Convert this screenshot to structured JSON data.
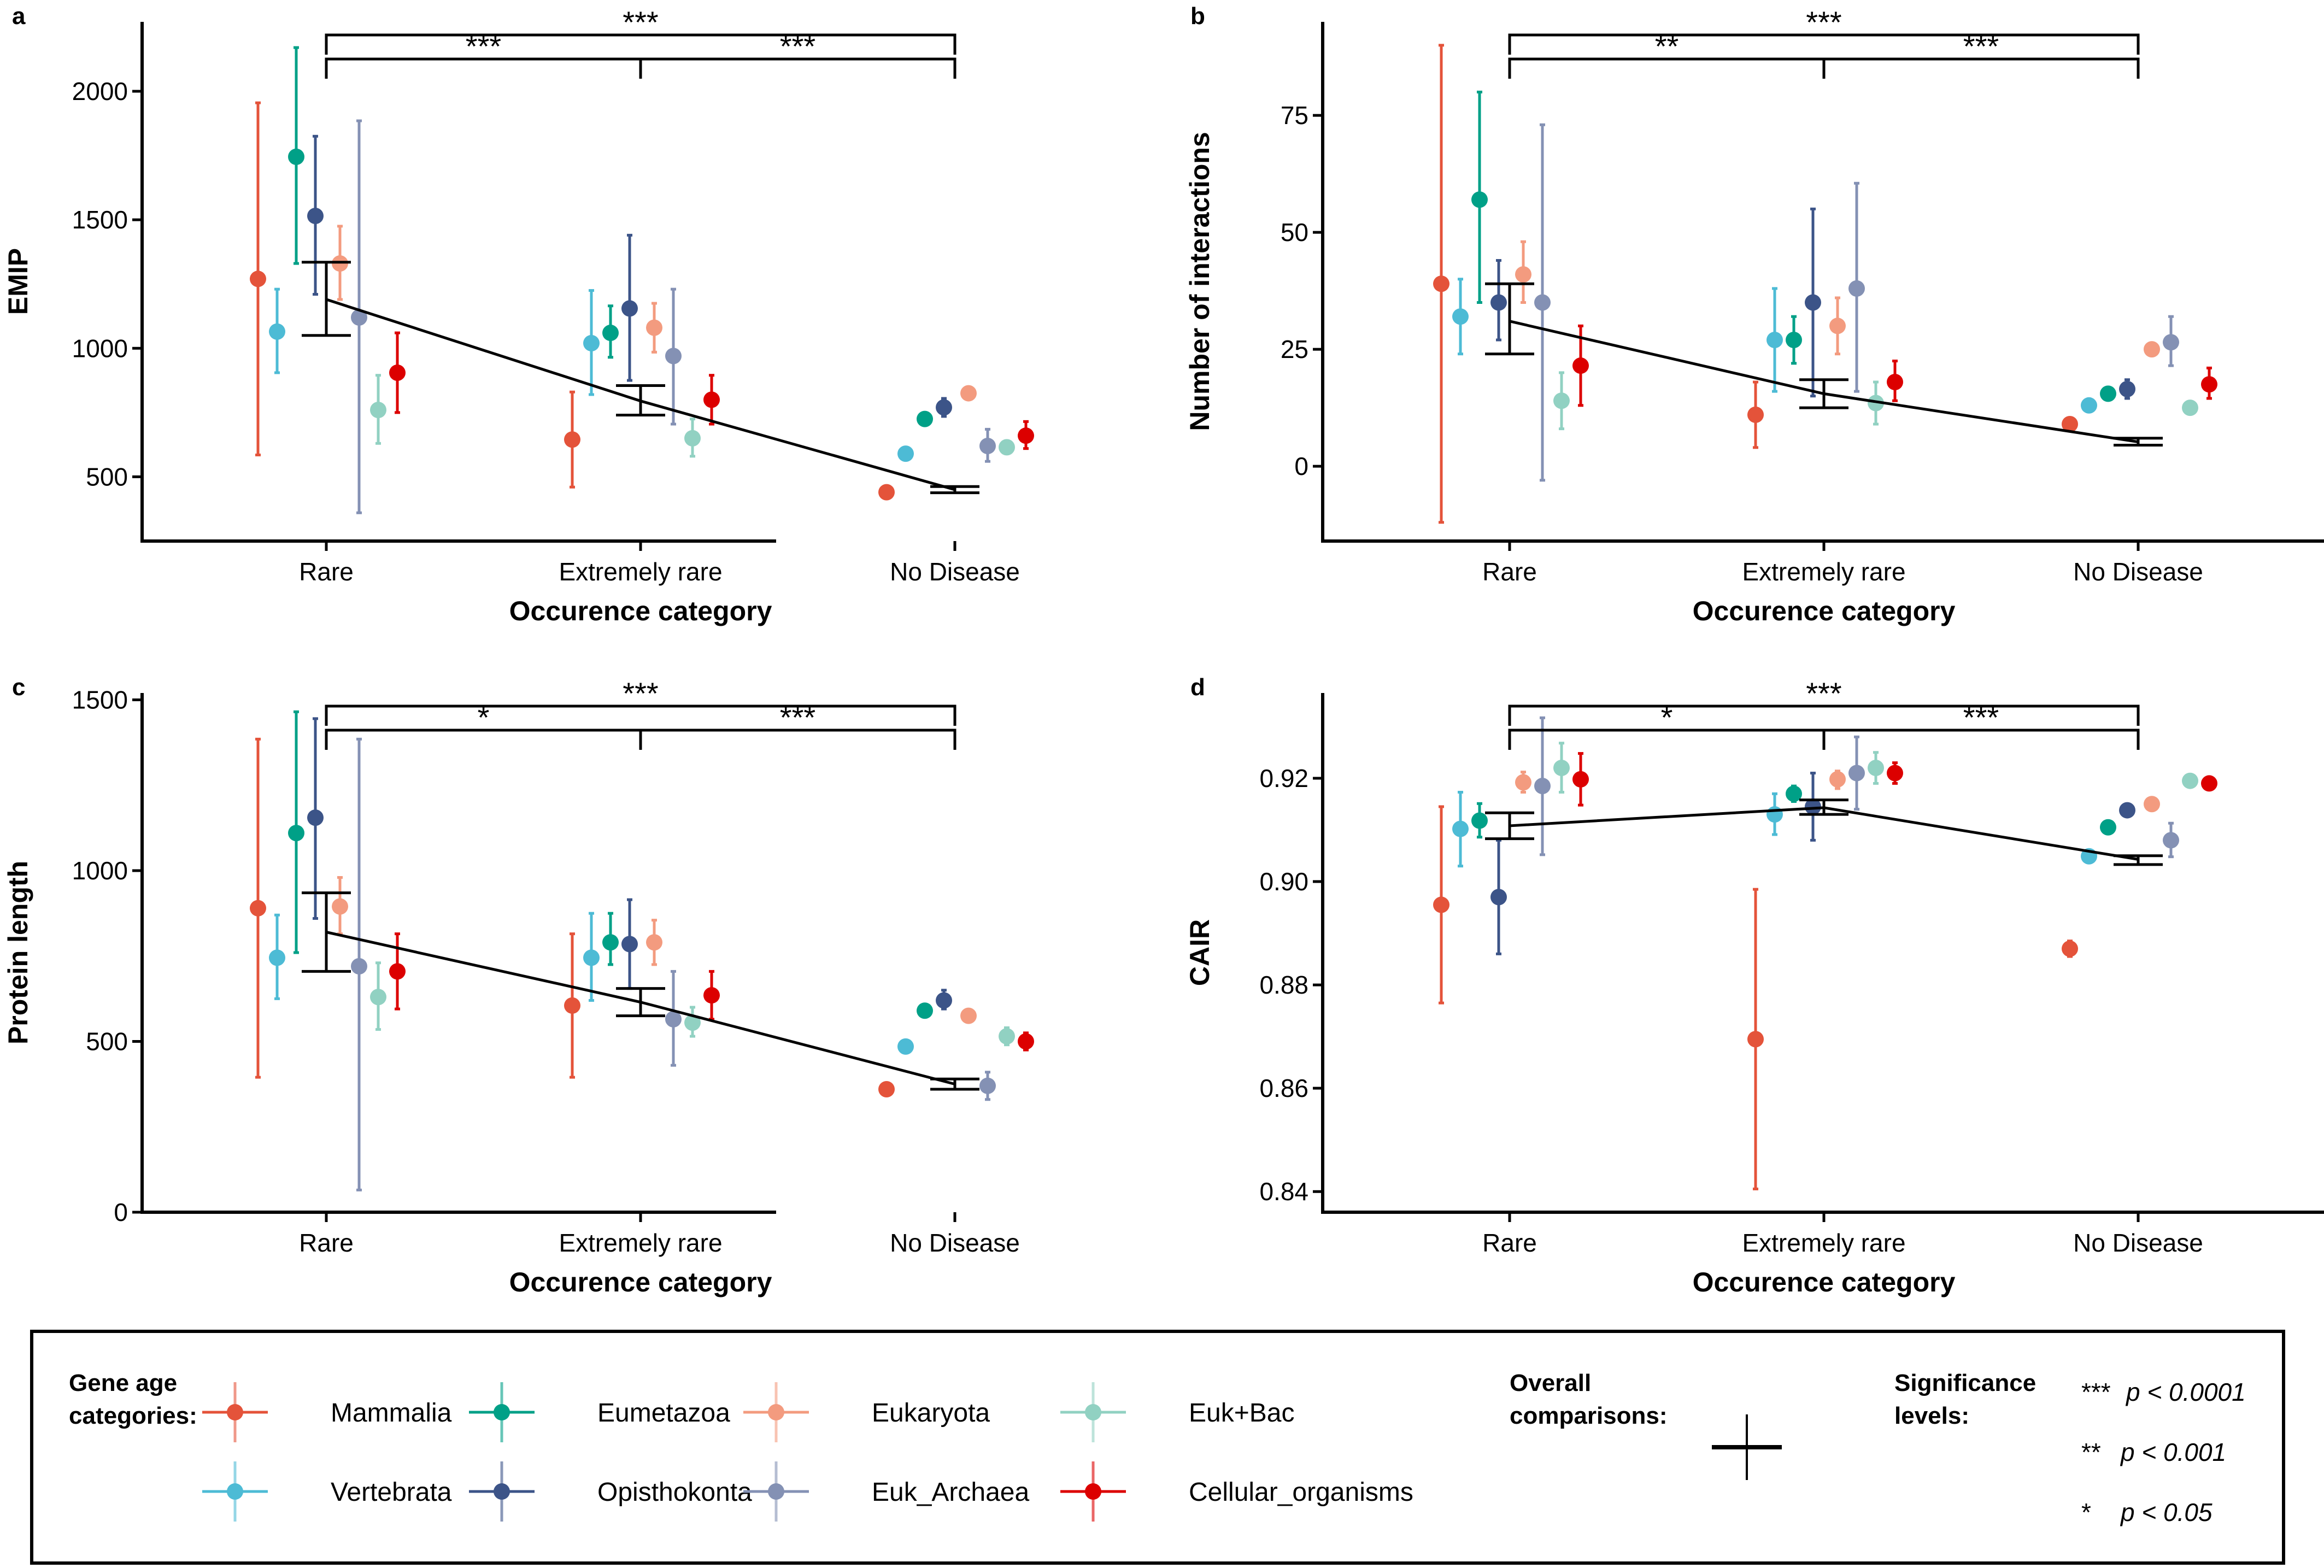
{
  "age_categories": [
    {
      "name": "Mammalia",
      "color": "#E4533A"
    },
    {
      "name": "Vertebrata",
      "color": "#4DBBD5"
    },
    {
      "name": "Eumetazoa",
      "color": "#00A087"
    },
    {
      "name": "Opisthokonta",
      "color": "#3C5488"
    },
    {
      "name": "Eukaryota",
      "color": "#F39B7F"
    },
    {
      "name": "Euk_Archaea",
      "color": "#8491B4"
    },
    {
      "name": "Euk+Bac",
      "color": "#91D1C2"
    },
    {
      "name": "Cellular_organisms",
      "color": "#DC0000"
    }
  ],
  "legend": {
    "gene_age_label": [
      "Gene age",
      "categories:"
    ],
    "overall_label": [
      "Overall",
      "comparisons:"
    ],
    "significance_label": [
      "Significance",
      "levels:"
    ],
    "significance_levels": [
      {
        "stars": "***",
        "text": "p < 0.0001"
      },
      {
        "stars": "**",
        "text": "p < 0.001"
      },
      {
        "stars": "*",
        "text": "p < 0.05"
      }
    ]
  },
  "chart_data": [
    {
      "panel": "a",
      "type": "scatter",
      "ylabel": "EMIP",
      "xlabel": "Occurence category",
      "categories": [
        "Rare",
        "Extremely rare",
        "No Disease"
      ],
      "ylim": [
        250,
        2270
      ],
      "yticks": [
        500,
        1000,
        1500,
        2000
      ],
      "series": [
        {
          "name": "Mammalia",
          "mean": [
            1270,
            645,
            440
          ],
          "low": [
            585,
            460,
            440
          ],
          "high": [
            1955,
            830,
            440
          ]
        },
        {
          "name": "Vertebrata",
          "mean": [
            1065,
            1020,
            590
          ],
          "low": [
            905,
            820,
            590
          ],
          "high": [
            1230,
            1225,
            590
          ]
        },
        {
          "name": "Eumetazoa",
          "mean": [
            1745,
            1060,
            725
          ],
          "low": [
            1330,
            965,
            725
          ],
          "high": [
            2170,
            1165,
            725
          ]
        },
        {
          "name": "Opisthokonta",
          "mean": [
            1515,
            1155,
            770
          ],
          "low": [
            1210,
            875,
            735
          ],
          "high": [
            1825,
            1440,
            805
          ]
        },
        {
          "name": "Eukaryota",
          "mean": [
            1330,
            1080,
            825
          ],
          "low": [
            1190,
            985,
            825
          ],
          "high": [
            1475,
            1175,
            825
          ]
        },
        {
          "name": "Euk_Archaea",
          "mean": [
            1120,
            970,
            620
          ],
          "low": [
            360,
            705,
            560
          ],
          "high": [
            1885,
            1230,
            685
          ]
        },
        {
          "name": "Euk+Bac",
          "mean": [
            760,
            650,
            615
          ],
          "low": [
            630,
            580,
            590
          ],
          "high": [
            895,
            725,
            640
          ]
        },
        {
          "name": "Cellular_organisms",
          "mean": [
            905,
            800,
            660
          ],
          "low": [
            750,
            705,
            610
          ],
          "high": [
            1060,
            895,
            715
          ]
        }
      ],
      "overall": {
        "mean": [
          1190,
          795,
          450
        ],
        "low": [
          1050,
          740,
          438
        ],
        "high": [
          1335,
          855,
          462
        ]
      },
      "comparisons": [
        {
          "from": "Rare",
          "to": "No Disease",
          "label": "***"
        },
        {
          "from": "Rare",
          "to": "Extremely rare",
          "label": "***"
        },
        {
          "from": "Extremely rare",
          "to": "No Disease",
          "label": "***"
        }
      ]
    },
    {
      "panel": "b",
      "type": "scatter",
      "ylabel": "Number of interactions",
      "xlabel": "Occurence category",
      "categories": [
        "Rare",
        "Extremely rare",
        "No Disease"
      ],
      "ylim": [
        -16,
        95
      ],
      "yticks": [
        0,
        25,
        50,
        75
      ],
      "series": [
        {
          "name": "Mammalia",
          "mean": [
            39,
            11,
            9
          ],
          "low": [
            -12,
            4,
            9
          ],
          "high": [
            90,
            18,
            9
          ]
        },
        {
          "name": "Vertebrata",
          "mean": [
            32,
            27,
            13
          ],
          "low": [
            24,
            16,
            13
          ],
          "high": [
            40,
            38,
            13
          ]
        },
        {
          "name": "Eumetazoa",
          "mean": [
            57,
            27,
            15.5
          ],
          "low": [
            35,
            22,
            15.5
          ],
          "high": [
            80,
            32,
            15.5
          ]
        },
        {
          "name": "Opisthokonta",
          "mean": [
            35,
            35,
            16.5
          ],
          "low": [
            27,
            15,
            14.5
          ],
          "high": [
            44,
            55,
            18.5
          ]
        },
        {
          "name": "Eukaryota",
          "mean": [
            41,
            30,
            25
          ],
          "low": [
            35,
            24,
            25
          ],
          "high": [
            48,
            36,
            25
          ]
        },
        {
          "name": "Euk_Archaea",
          "mean": [
            35,
            38,
            26.5
          ],
          "low": [
            -3,
            16,
            21.5
          ],
          "high": [
            73,
            60.5,
            32
          ]
        },
        {
          "name": "Euk+Bac",
          "mean": [
            14,
            13.5,
            12.5
          ],
          "low": [
            8,
            9,
            12.5
          ],
          "high": [
            20,
            18,
            12.5
          ]
        },
        {
          "name": "Cellular_organisms",
          "mean": [
            21.5,
            18,
            17.5
          ],
          "low": [
            13,
            14,
            14.5
          ],
          "high": [
            30,
            22.5,
            21
          ]
        }
      ],
      "overall": {
        "mean": [
          31,
          15.5,
          5.2
        ],
        "low": [
          24,
          12.5,
          4.5
        ],
        "high": [
          39,
          18.5,
          6
        ]
      },
      "comparisons": [
        {
          "from": "Rare",
          "to": "No Disease",
          "label": "***"
        },
        {
          "from": "Rare",
          "to": "Extremely rare",
          "label": "**"
        },
        {
          "from": "Extremely rare",
          "to": "No Disease",
          "label": "***"
        }
      ]
    },
    {
      "panel": "c",
      "type": "scatter",
      "ylabel": "Protein length",
      "xlabel": "Occurence category",
      "categories": [
        "Rare",
        "Extremely rare",
        "No Disease"
      ],
      "ylim": [
        0,
        1520
      ],
      "yticks": [
        0,
        500,
        1000,
        1500
      ],
      "series": [
        {
          "name": "Mammalia",
          "mean": [
            890,
            605,
            360
          ],
          "low": [
            395,
            395,
            360
          ],
          "high": [
            1385,
            815,
            360
          ]
        },
        {
          "name": "Vertebrata",
          "mean": [
            745,
            745,
            485
          ],
          "low": [
            625,
            620,
            485
          ],
          "high": [
            870,
            875,
            485
          ]
        },
        {
          "name": "Eumetazoa",
          "mean": [
            1110,
            790,
            590
          ],
          "low": [
            760,
            725,
            590
          ],
          "high": [
            1465,
            875,
            590
          ]
        },
        {
          "name": "Opisthokonta",
          "mean": [
            1155,
            785,
            620
          ],
          "low": [
            860,
            655,
            595
          ],
          "high": [
            1445,
            915,
            650
          ]
        },
        {
          "name": "Eukaryota",
          "mean": [
            895,
            790,
            575
          ],
          "low": [
            815,
            725,
            575
          ],
          "high": [
            980,
            855,
            575
          ]
        },
        {
          "name": "Euk_Archaea",
          "mean": [
            720,
            565,
            370
          ],
          "low": [
            65,
            430,
            330
          ],
          "high": [
            1385,
            705,
            410
          ]
        },
        {
          "name": "Euk+Bac",
          "mean": [
            630,
            555,
            515
          ],
          "low": [
            535,
            515,
            490
          ],
          "high": [
            730,
            600,
            540
          ]
        },
        {
          "name": "Cellular_organisms",
          "mean": [
            705,
            635,
            500
          ],
          "low": [
            595,
            565,
            475
          ],
          "high": [
            815,
            705,
            525
          ]
        }
      ],
      "overall": {
        "mean": [
          820,
          615,
          375
        ],
        "low": [
          705,
          575,
          360
        ],
        "high": [
          935,
          655,
          390
        ]
      },
      "comparisons": [
        {
          "from": "Rare",
          "to": "No Disease",
          "label": "***"
        },
        {
          "from": "Rare",
          "to": "Extremely rare",
          "label": "*"
        },
        {
          "from": "Extremely rare",
          "to": "No Disease",
          "label": "***"
        }
      ]
    },
    {
      "panel": "d",
      "type": "scatter",
      "ylabel": "CAIR",
      "xlabel": "Occurence category",
      "categories": [
        "Rare",
        "Extremely rare",
        "No Disease"
      ],
      "ylim": [
        0.836,
        0.9365
      ],
      "yticks": [
        0.84,
        0.86,
        0.88,
        0.9,
        0.92
      ],
      "ytick_labels": [
        "0.84",
        "0.86",
        "0.88",
        "0.90",
        "0.92"
      ],
      "series": [
        {
          "name": "Mammalia",
          "mean": [
            0.8955,
            0.8695,
            0.887
          ],
          "low": [
            0.8765,
            0.8405,
            0.8855
          ],
          "high": [
            0.9145,
            0.8985,
            0.8885
          ]
        },
        {
          "name": "Vertebrata",
          "mean": [
            0.9102,
            0.913,
            0.9049
          ],
          "low": [
            0.903,
            0.9091,
            0.9049
          ],
          "high": [
            0.9173,
            0.917,
            0.9049
          ]
        },
        {
          "name": "Eumetazoa",
          "mean": [
            0.9118,
            0.917,
            0.9105
          ],
          "low": [
            0.9086,
            0.9155,
            0.9105
          ],
          "high": [
            0.9151,
            0.9185,
            0.9105
          ]
        },
        {
          "name": "Opisthokonta",
          "mean": [
            0.897,
            0.9145,
            0.9138
          ],
          "low": [
            0.886,
            0.908,
            0.9126
          ],
          "high": [
            0.908,
            0.921,
            0.915
          ]
        },
        {
          "name": "Eukaryota",
          "mean": [
            0.9192,
            0.9198,
            0.915
          ],
          "low": [
            0.9173,
            0.918,
            0.915
          ],
          "high": [
            0.9212,
            0.9214,
            0.915
          ]
        },
        {
          "name": "Euk_Archaea",
          "mean": [
            0.9185,
            0.921,
            0.908
          ],
          "low": [
            0.9052,
            0.914,
            0.9048
          ],
          "high": [
            0.9317,
            0.928,
            0.9113
          ]
        },
        {
          "name": "Euk+Bac",
          "mean": [
            0.922,
            0.922,
            0.9195
          ],
          "low": [
            0.9173,
            0.919,
            0.9195
          ],
          "high": [
            0.9268,
            0.925,
            0.9195
          ]
        },
        {
          "name": "Cellular_organisms",
          "mean": [
            0.9198,
            0.921,
            0.919
          ],
          "low": [
            0.9148,
            0.919,
            0.9178
          ],
          "high": [
            0.9248,
            0.923,
            0.9202
          ]
        }
      ],
      "overall": {
        "mean": [
          0.9108,
          0.9143,
          0.9043
        ],
        "low": [
          0.9083,
          0.913,
          0.9033
        ],
        "high": [
          0.9133,
          0.9158,
          0.905
        ]
      },
      "comparisons": [
        {
          "from": "Rare",
          "to": "No Disease",
          "label": "***"
        },
        {
          "from": "Rare",
          "to": "Extremely rare",
          "label": "*"
        },
        {
          "from": "Extremely rare",
          "to": "No Disease",
          "label": "***"
        }
      ]
    }
  ]
}
